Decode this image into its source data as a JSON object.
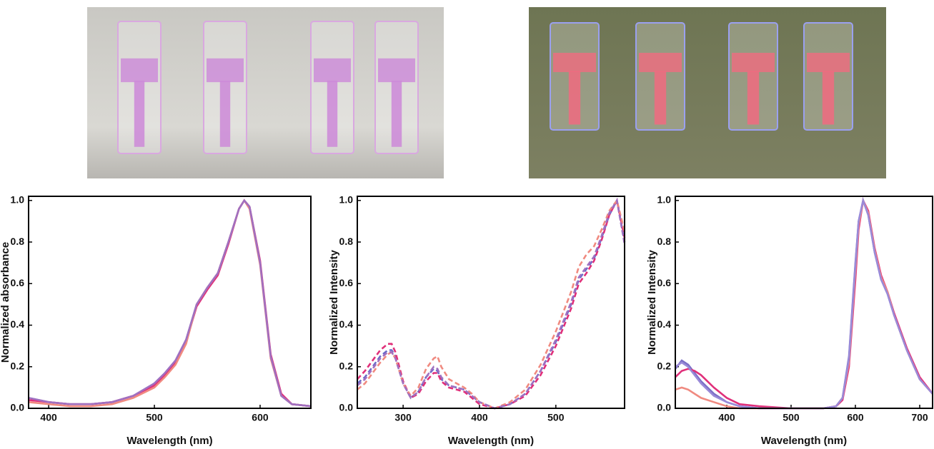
{
  "chart_data": [
    {
      "type": "line",
      "xlabel": "Wavelength (nm)",
      "ylabel": "Normalized absorbance",
      "xlim": [
        381,
        648
      ],
      "ylim": [
        0,
        1.02
      ],
      "xticks": [
        400,
        500,
        600
      ],
      "yticks": [
        {
          "value": 0,
          "label": "0.0"
        },
        0.2,
        0.4,
        0.6,
        0.8,
        {
          "value": 1,
          "label": "1.0"
        }
      ],
      "linestyle": "solid",
      "x": [
        381,
        400,
        420,
        440,
        460,
        480,
        500,
        510,
        520,
        530,
        540,
        550,
        560,
        570,
        580,
        585,
        590,
        600,
        610,
        620,
        630,
        648
      ],
      "series": [
        {
          "color": "#7b6fc6",
          "values": [
            0.05,
            0.03,
            0.02,
            0.02,
            0.03,
            0.06,
            0.12,
            0.17,
            0.23,
            0.33,
            0.5,
            0.58,
            0.65,
            0.8,
            0.96,
            1.0,
            0.97,
            0.7,
            0.25,
            0.06,
            0.02,
            0.01
          ]
        },
        {
          "color": "#e0307a",
          "values": [
            0.04,
            0.03,
            0.02,
            0.02,
            0.03,
            0.06,
            0.11,
            0.16,
            0.22,
            0.32,
            0.49,
            0.57,
            0.64,
            0.79,
            0.96,
            1.0,
            0.97,
            0.71,
            0.26,
            0.07,
            0.02,
            0.01
          ]
        },
        {
          "color": "#f08a80",
          "values": [
            0.03,
            0.02,
            0.01,
            0.01,
            0.02,
            0.05,
            0.1,
            0.15,
            0.21,
            0.31,
            0.5,
            0.58,
            0.65,
            0.8,
            0.96,
            1.0,
            0.96,
            0.69,
            0.24,
            0.06,
            0.02,
            0.01
          ]
        },
        {
          "color": "#a070c0",
          "values": [
            0.05,
            0.03,
            0.02,
            0.02,
            0.03,
            0.06,
            0.12,
            0.17,
            0.23,
            0.33,
            0.5,
            0.58,
            0.65,
            0.8,
            0.96,
            1.0,
            0.97,
            0.7,
            0.25,
            0.06,
            0.02,
            0.01
          ]
        }
      ]
    },
    {
      "type": "line",
      "xlabel": "Wavelength (nm)",
      "ylabel": "Normalized Intensity",
      "xlim": [
        240,
        590
      ],
      "ylim": [
        0,
        1.02
      ],
      "xticks": [
        300,
        400,
        500
      ],
      "yticks": [
        {
          "value": 0,
          "label": "0.0"
        },
        0.2,
        0.4,
        0.6,
        0.8,
        {
          "value": 1,
          "label": "1.0"
        }
      ],
      "linestyle": "dashed",
      "x": [
        240,
        250,
        260,
        270,
        280,
        285,
        290,
        300,
        310,
        320,
        330,
        340,
        345,
        350,
        360,
        370,
        380,
        390,
        400,
        420,
        440,
        460,
        480,
        500,
        520,
        530,
        540,
        550,
        560,
        570,
        580,
        590
      ],
      "series": [
        {
          "color": "#6a6ac8",
          "values": [
            0.12,
            0.15,
            0.2,
            0.25,
            0.28,
            0.28,
            0.25,
            0.12,
            0.05,
            0.08,
            0.15,
            0.19,
            0.18,
            0.14,
            0.11,
            0.1,
            0.09,
            0.06,
            0.03,
            0.0,
            0.02,
            0.07,
            0.18,
            0.32,
            0.5,
            0.62,
            0.67,
            0.72,
            0.82,
            0.93,
            1.0,
            0.8
          ]
        },
        {
          "color": "#e0307a",
          "values": [
            0.14,
            0.18,
            0.23,
            0.28,
            0.31,
            0.31,
            0.27,
            0.13,
            0.05,
            0.07,
            0.13,
            0.17,
            0.17,
            0.13,
            0.1,
            0.09,
            0.08,
            0.05,
            0.02,
            0.0,
            0.02,
            0.06,
            0.16,
            0.3,
            0.48,
            0.6,
            0.65,
            0.71,
            0.81,
            0.93,
            1.0,
            0.82
          ]
        },
        {
          "color": "#f08a80",
          "values": [
            0.09,
            0.12,
            0.17,
            0.22,
            0.26,
            0.27,
            0.24,
            0.12,
            0.06,
            0.1,
            0.19,
            0.24,
            0.25,
            0.2,
            0.14,
            0.12,
            0.1,
            0.07,
            0.03,
            0.0,
            0.03,
            0.09,
            0.21,
            0.37,
            0.56,
            0.68,
            0.74,
            0.78,
            0.86,
            0.95,
            1.0,
            0.85
          ]
        },
        {
          "color": "#a070c0",
          "values": [
            0.11,
            0.14,
            0.19,
            0.24,
            0.27,
            0.27,
            0.24,
            0.12,
            0.05,
            0.08,
            0.15,
            0.2,
            0.19,
            0.15,
            0.11,
            0.1,
            0.09,
            0.06,
            0.03,
            0.0,
            0.02,
            0.07,
            0.18,
            0.33,
            0.51,
            0.63,
            0.68,
            0.73,
            0.83,
            0.94,
            1.0,
            0.79
          ]
        }
      ]
    },
    {
      "type": "line",
      "xlabel": "Wavelength (nm)",
      "ylabel": "Normalized Intensity",
      "xlim": [
        320,
        720
      ],
      "ylim": [
        0,
        1.02
      ],
      "xticks": [
        400,
        500,
        600,
        700
      ],
      "yticks": [
        {
          "value": 0,
          "label": "0.0"
        },
        0.2,
        0.4,
        0.6,
        0.8,
        {
          "value": 1,
          "label": "1.0"
        }
      ],
      "linestyle": "solid",
      "x": [
        320,
        330,
        340,
        350,
        360,
        380,
        400,
        420,
        450,
        500,
        550,
        570,
        580,
        590,
        600,
        605,
        612,
        620,
        630,
        640,
        650,
        660,
        680,
        700,
        720
      ],
      "series": [
        {
          "color": "#7b6fc6",
          "values": [
            0.19,
            0.23,
            0.21,
            0.17,
            0.13,
            0.07,
            0.03,
            0.01,
            0.0,
            0.0,
            0.0,
            0.01,
            0.05,
            0.25,
            0.7,
            0.9,
            1.0,
            0.93,
            0.75,
            0.62,
            0.55,
            0.45,
            0.28,
            0.14,
            0.07
          ]
        },
        {
          "color": "#e0307a",
          "values": [
            0.15,
            0.18,
            0.19,
            0.18,
            0.16,
            0.1,
            0.05,
            0.02,
            0.01,
            0.0,
            0.0,
            0.01,
            0.04,
            0.2,
            0.62,
            0.86,
            1.0,
            0.95,
            0.77,
            0.64,
            0.56,
            0.46,
            0.29,
            0.15,
            0.07
          ]
        },
        {
          "color": "#f08a80",
          "values": [
            0.09,
            0.1,
            0.09,
            0.07,
            0.05,
            0.03,
            0.01,
            0.0,
            0.0,
            0.0,
            0.0,
            0.01,
            0.05,
            0.22,
            0.66,
            0.88,
            1.0,
            0.94,
            0.76,
            0.63,
            0.56,
            0.45,
            0.28,
            0.14,
            0.07
          ]
        },
        {
          "color": "#9a8ad8",
          "values": [
            0.2,
            0.22,
            0.2,
            0.16,
            0.12,
            0.06,
            0.03,
            0.01,
            0.0,
            0.0,
            0.0,
            0.01,
            0.05,
            0.24,
            0.69,
            0.9,
            1.0,
            0.93,
            0.75,
            0.62,
            0.55,
            0.45,
            0.28,
            0.14,
            0.07
          ]
        }
      ]
    }
  ]
}
